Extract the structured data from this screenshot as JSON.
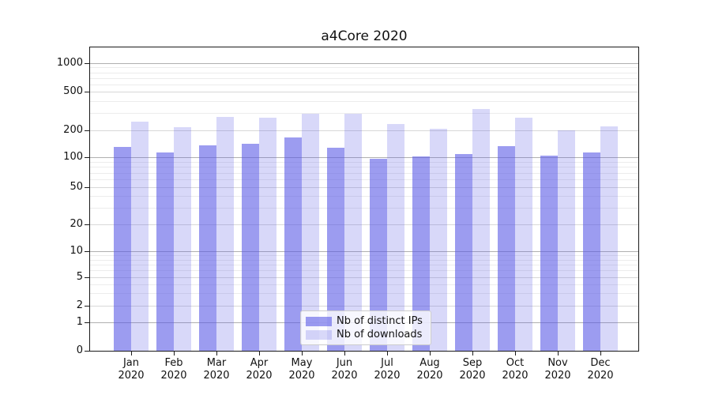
{
  "chart_data": {
    "type": "bar",
    "title": "a4Core 2020",
    "categories": [
      "Jan",
      "Feb",
      "Mar",
      "Apr",
      "May",
      "Jun",
      "Jul",
      "Aug",
      "Sep",
      "Oct",
      "Nov",
      "Dec"
    ],
    "category_year": "2020",
    "series": [
      {
        "name": "Nb of distinct IPs",
        "color": "rgba(90,90,230,0.60)",
        "values": [
          130,
          113,
          137,
          140,
          168,
          127,
          97,
          103,
          108,
          132,
          104,
          113
        ]
      },
      {
        "name": "Nb of downloads",
        "color": "rgba(90,90,230,0.24)",
        "values": [
          245,
          217,
          273,
          269,
          297,
          296,
          233,
          207,
          332,
          269,
          200,
          221
        ]
      }
    ],
    "xlabel": "",
    "ylabel": "",
    "yscale": "log-with-zero-baseline",
    "yticks": [
      0,
      1,
      2,
      5,
      10,
      20,
      50,
      100,
      200,
      500,
      1000
    ],
    "ylim": [
      0,
      1400
    ],
    "grid": "horizontal major + faint log minors",
    "legend_position": "lower center"
  },
  "colors": {
    "bar_dark": "rgba(90,90,230,0.60)",
    "bar_light": "rgba(90,90,230,0.24)",
    "grid_major": "#b0b0b0",
    "grid_medium": "#d8d8d8",
    "grid_minor": "#ececec",
    "axis": "#1a1a1a",
    "background": "#ffffff"
  }
}
